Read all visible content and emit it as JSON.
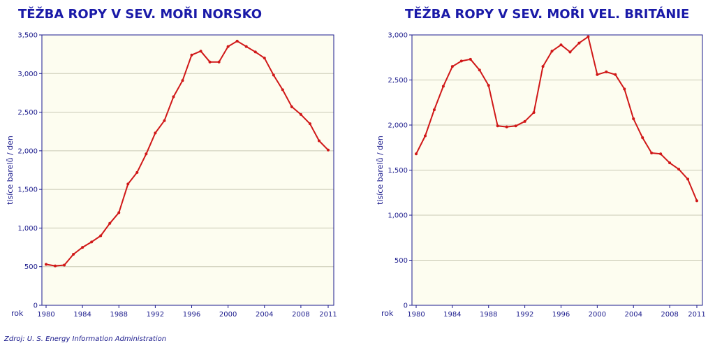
{
  "source": "Zdroj: U. S. Energy Information Administration",
  "colors": {
    "title": "#1a1aa8",
    "line": "#d01818",
    "plot_bg": "#fdfdf0",
    "grid": "#c9c9b4",
    "axis": "#1a1a8c"
  },
  "chart_data": [
    {
      "type": "line",
      "title": "TĚŽBA ROPY V SEV. MOŘI NORSKO",
      "ylabel": "tisíce barelů / den",
      "xlabel": "rok",
      "ylim": [
        0,
        3500
      ],
      "xlim": [
        1980,
        2011
      ],
      "y_ticks": [
        0,
        500,
        1000,
        1500,
        2000,
        2500,
        3000,
        3500
      ],
      "y_tick_labels": [
        "0",
        "500",
        "1,000",
        "1,500",
        "2,000",
        "2,500",
        "3,000",
        "3,500"
      ],
      "x_ticks": [
        1980,
        1984,
        1988,
        1992,
        1996,
        2000,
        2004,
        2008,
        2011
      ],
      "x_tick_labels": [
        "1980",
        "1984",
        "1988",
        "1992",
        "1996",
        "2000",
        "2004",
        "2008",
        "2011"
      ],
      "grid": true,
      "series": [
        {
          "x": [
            1980,
            1981,
            1982,
            1983,
            1984,
            1985,
            1986,
            1987,
            1988,
            1989,
            1990,
            1991,
            1992,
            1993,
            1994,
            1995,
            1996,
            1997,
            1998,
            1999,
            2000,
            2001,
            2002,
            2003,
            2004,
            2005,
            2006,
            2007,
            2008,
            2009,
            2010,
            2011
          ],
          "values": [
            530,
            510,
            520,
            660,
            750,
            820,
            900,
            1060,
            1200,
            1570,
            1720,
            1960,
            2230,
            2390,
            2700,
            2910,
            3240,
            3290,
            3150,
            3150,
            3350,
            3420,
            3350,
            3280,
            3200,
            2980,
            2790,
            2570,
            2470,
            2350,
            2130,
            2010
          ]
        }
      ]
    },
    {
      "type": "line",
      "title": "TĚŽBA ROPY V SEV. MOŘI VEL. BRITÁNIE",
      "ylabel": "tisíce barelů / den",
      "xlabel": "rok",
      "ylim": [
        0,
        3000
      ],
      "xlim": [
        1980,
        2011
      ],
      "y_ticks": [
        0,
        500,
        1000,
        1500,
        2000,
        2500,
        3000
      ],
      "y_tick_labels": [
        "0",
        "500",
        "1,000",
        "1,500",
        "2,000",
        "2,500",
        "3,000"
      ],
      "x_ticks": [
        1980,
        1984,
        1988,
        1992,
        1996,
        2000,
        2004,
        2008,
        2011
      ],
      "x_tick_labels": [
        "1980",
        "1984",
        "1988",
        "1992",
        "1996",
        "2000",
        "2004",
        "2008",
        "2011"
      ],
      "grid": true,
      "series": [
        {
          "x": [
            1980,
            1981,
            1982,
            1983,
            1984,
            1985,
            1986,
            1987,
            1988,
            1989,
            1990,
            1991,
            1992,
            1993,
            1994,
            1995,
            1996,
            1997,
            1998,
            1999,
            2000,
            2001,
            2002,
            2003,
            2004,
            2005,
            2006,
            2007,
            2008,
            2009,
            2010,
            2011
          ],
          "values": [
            1680,
            1880,
            2170,
            2430,
            2650,
            2710,
            2730,
            2610,
            2440,
            1990,
            1980,
            1990,
            2040,
            2140,
            2650,
            2820,
            2890,
            2810,
            2910,
            2980,
            2560,
            2590,
            2560,
            2400,
            2070,
            1860,
            1690,
            1680,
            1580,
            1510,
            1400,
            1160
          ]
        }
      ]
    }
  ]
}
